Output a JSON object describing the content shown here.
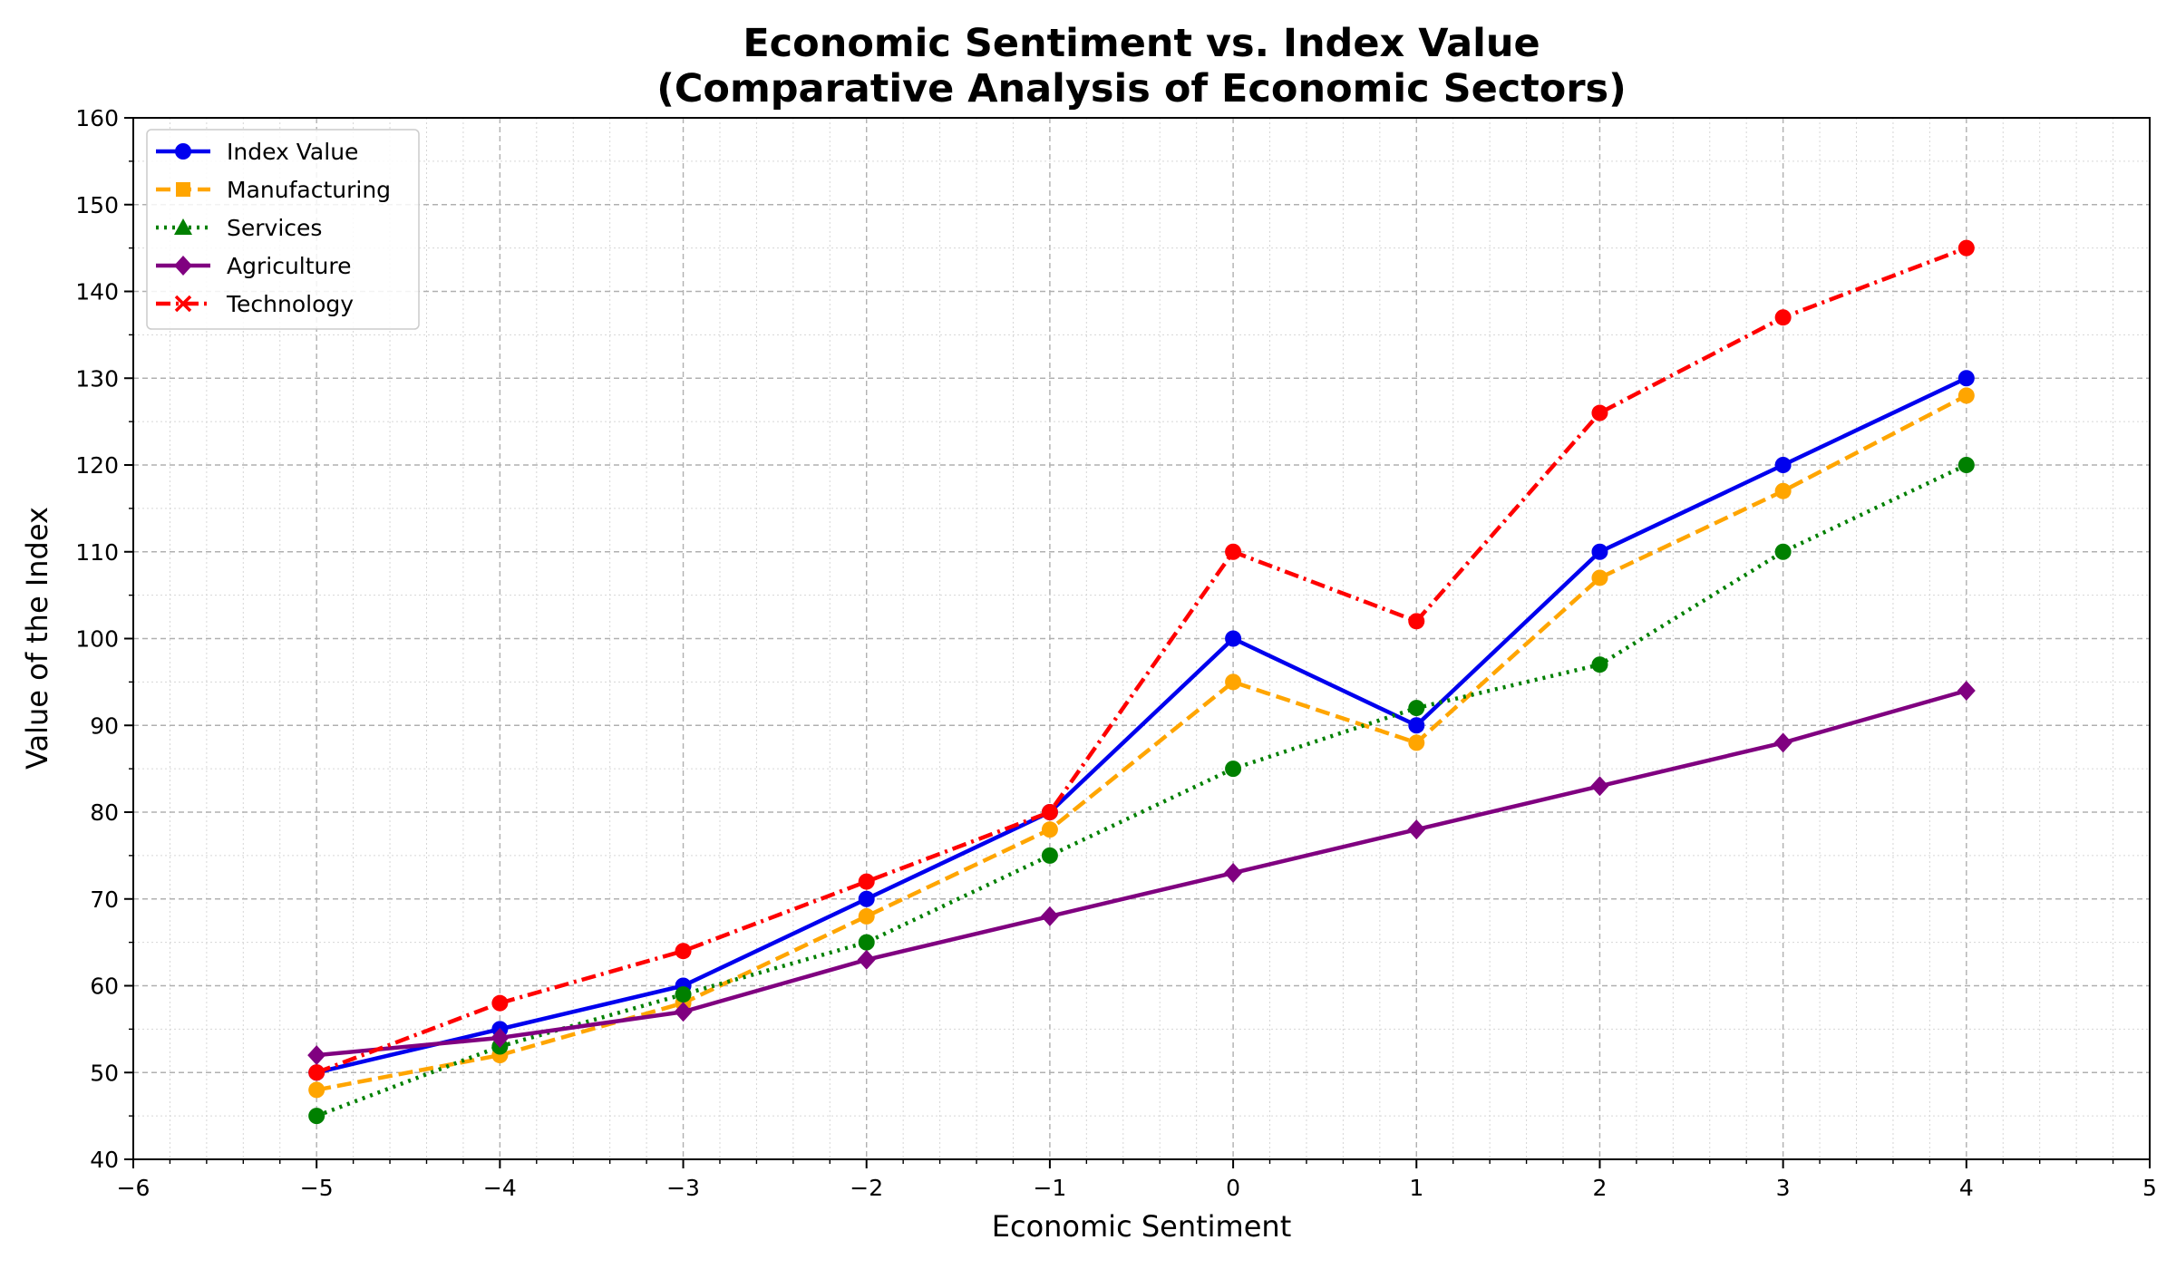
{
  "chart_data": {
    "type": "line",
    "title": "Economic Sentiment vs. Index Value",
    "subtitle": "(Comparative Analysis of Economic Sectors)",
    "xlabel": "Economic Sentiment",
    "ylabel": "Value of the Index",
    "xlim": [
      -6,
      5
    ],
    "ylim": [
      40,
      160
    ],
    "xticks": [
      -6,
      -5,
      -4,
      -3,
      -2,
      -1,
      0,
      1,
      2,
      3,
      4,
      5
    ],
    "xtick_labels": [
      "−6",
      "−5",
      "−4",
      "−3",
      "−2",
      "−1",
      "0",
      "1",
      "2",
      "3",
      "4",
      "5"
    ],
    "yticks": [
      40,
      50,
      60,
      70,
      80,
      90,
      100,
      110,
      120,
      130,
      140,
      150,
      160
    ],
    "ytick_labels": [
      "40",
      "50",
      "60",
      "70",
      "80",
      "90",
      "100",
      "110",
      "120",
      "130",
      "140",
      "150",
      "160"
    ],
    "grid": true,
    "legend_position": "top-left",
    "x": [
      -5,
      -4,
      -3,
      -2,
      -1,
      0,
      1,
      2,
      3,
      4
    ],
    "series": [
      {
        "name": "Index Value",
        "color": "#0000ee",
        "dash": "solid",
        "legend_marker": "circle",
        "values": [
          50,
          55,
          60,
          70,
          80,
          100,
          90,
          110,
          120,
          130
        ]
      },
      {
        "name": "Manufacturing",
        "color": "#ffa500",
        "dash": "dashed",
        "legend_marker": "square",
        "values": [
          48,
          52,
          58,
          68,
          78,
          95,
          88,
          107,
          117,
          128
        ]
      },
      {
        "name": "Services",
        "color": "#008000",
        "dash": "dotted",
        "legend_marker": "triangle",
        "values": [
          45,
          53,
          59,
          65,
          75,
          85,
          92,
          97,
          110,
          120
        ]
      },
      {
        "name": "Agriculture",
        "color": "#800080",
        "dash": "solid",
        "legend_marker": "diamond",
        "values": [
          52,
          54,
          57,
          63,
          68,
          73,
          78,
          83,
          88,
          94
        ]
      },
      {
        "name": "Technology",
        "color": "#ff0000",
        "dash": "dashdot",
        "legend_marker": "x",
        "values": [
          50,
          58,
          64,
          72,
          80,
          110,
          102,
          126,
          137,
          145
        ]
      }
    ]
  }
}
